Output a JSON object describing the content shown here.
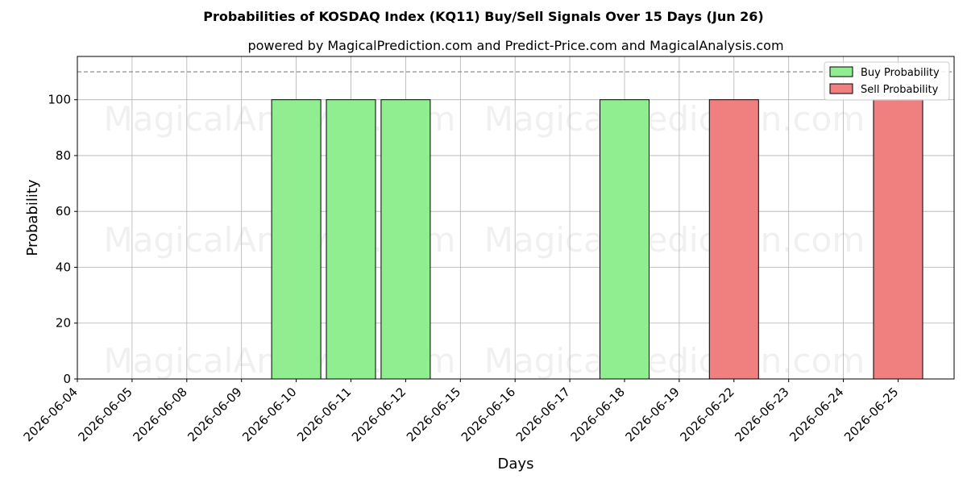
{
  "chart_data": {
    "type": "bar",
    "title": "Probabilities of KOSDAQ Index (KQ11) Buy/Sell Signals Over 15 Days (Jun 26)",
    "subtitle": "powered by MagicalPrediction.com and Predict-Price.com and MagicalAnalysis.com",
    "xlabel": "Days",
    "ylabel": "Probability",
    "ylim": [
      0,
      115.5
    ],
    "yticks": [
      0,
      20,
      40,
      60,
      80,
      100
    ],
    "threshold": 110,
    "grid": true,
    "legend_position": "top-right",
    "categories": [
      "2026-06-04",
      "2026-06-05",
      "2026-06-08",
      "2026-06-09",
      "2026-06-10",
      "2026-06-11",
      "2026-06-12",
      "2026-06-15",
      "2026-06-16",
      "2026-06-17",
      "2026-06-18",
      "2026-06-19",
      "2026-06-22",
      "2026-06-23",
      "2026-06-24",
      "2026-06-25"
    ],
    "series": [
      {
        "name": "Buy Probability",
        "color": "#90ee90",
        "values": [
          0,
          0,
          0,
          0,
          100,
          100,
          100,
          0,
          0,
          0,
          100,
          0,
          0,
          0,
          0,
          0
        ]
      },
      {
        "name": "Sell Probability",
        "color": "#f08080",
        "values": [
          0,
          0,
          0,
          0,
          0,
          0,
          0,
          0,
          0,
          0,
          0,
          0,
          100,
          0,
          0,
          100
        ]
      }
    ],
    "watermarks": [
      "MagicalAnalysis.com",
      "MagicalPrediction.com"
    ]
  }
}
